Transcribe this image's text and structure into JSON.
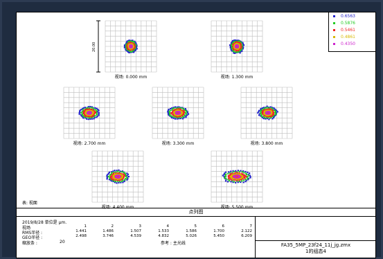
{
  "legend": {
    "items": [
      {
        "label": "0.6563",
        "color": "#2222cc"
      },
      {
        "label": "0.5876",
        "color": "#22cc22"
      },
      {
        "label": "0.5461",
        "color": "#ee2222"
      },
      {
        "label": "0.4861",
        "color": "#d8b800"
      },
      {
        "label": "0.4350",
        "color": "#cc22cc"
      }
    ]
  },
  "scale_bar_label": "20.00",
  "fields": [
    {
      "label": "视场: 0.000 mm"
    },
    {
      "label": "视场: 1.300 mm"
    },
    {
      "label": "视场: 2.700 mm"
    },
    {
      "label": "视场: 3.300 mm"
    },
    {
      "label": "视场: 3.800 mm"
    },
    {
      "label": "视场: 4.400 mm"
    },
    {
      "label": "视场: 5.500 mm"
    }
  ],
  "corner_note": "表: 视面",
  "title": "点列图",
  "info": {
    "date_line": "2019/8/28  单位是 μm.",
    "field_header": "视场",
    "rms_label": "RMS半径 :",
    "geo_label": "GEO半径 :",
    "scale_label": "缩放条  :",
    "scale_value": "20",
    "reference": "参考  : 主光线",
    "field_numbers": [
      "1",
      "2",
      "3",
      "4",
      "5",
      "6",
      "7"
    ],
    "rms_values": [
      "1.441",
      "1.486",
      "1.507",
      "1.533",
      "1.586",
      "1.700",
      "2.122"
    ],
    "geo_values": [
      "2.498",
      "3.746",
      "4.539",
      "4.832",
      "5.026",
      "5.450",
      "6.209"
    ]
  },
  "file_box": {
    "filename": "FA35_5MP_23f24_11j_jg.zmx",
    "config": "1的组态4"
  }
}
